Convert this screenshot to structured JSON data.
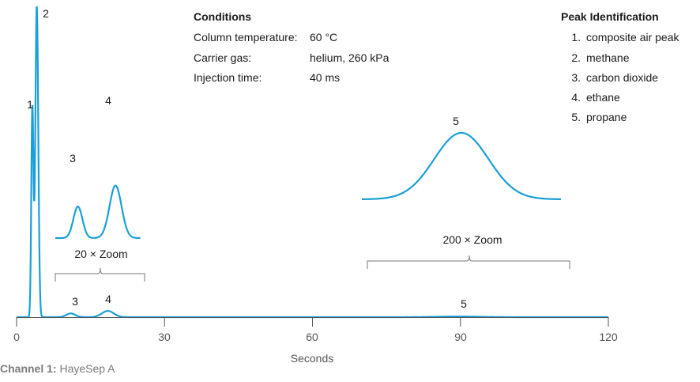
{
  "chart_data": {
    "type": "line",
    "xlabel": "Seconds",
    "xlim": [
      0,
      120
    ],
    "x_ticks": [
      "0",
      "30",
      "60",
      "90",
      "120"
    ],
    "grid": false,
    "color": "#1a9fd8",
    "peaks": [
      {
        "label": "1",
        "time": 3.2,
        "height": 0.67
      },
      {
        "label": "2",
        "time": 4.1,
        "height": 1.0
      },
      {
        "label": "3",
        "time": 11.0,
        "height": 0.012
      },
      {
        "label": "4",
        "time": 18.5,
        "height": 0.02
      },
      {
        "label": "5",
        "time": 89.5,
        "height": 0.002
      }
    ],
    "zoom_insets": [
      {
        "label": "20 × Zoom",
        "range": [
          8,
          26
        ],
        "peaks": [
          "3",
          "4"
        ]
      },
      {
        "label": "200 × Zoom",
        "range": [
          71,
          112
        ],
        "peaks": [
          "5"
        ]
      }
    ]
  },
  "conditions": {
    "title": "Conditions",
    "rows": [
      {
        "label": "Column temperature:",
        "value": "60 °C"
      },
      {
        "label": "Carrier gas:",
        "value": "helium, 260 kPa"
      },
      {
        "label": "Injection time:",
        "value": "40 ms"
      }
    ]
  },
  "peak_identification": {
    "title": "Peak Identification",
    "items": [
      {
        "num": "1.",
        "name": "composite air peak"
      },
      {
        "num": "2.",
        "name": "methane"
      },
      {
        "num": "3.",
        "name": "carbon dioxide"
      },
      {
        "num": "4.",
        "name": "ethane"
      },
      {
        "num": "5.",
        "name": "propane"
      }
    ]
  },
  "caption": {
    "bold": "Channel 1:",
    "text": "HayeSep A"
  }
}
